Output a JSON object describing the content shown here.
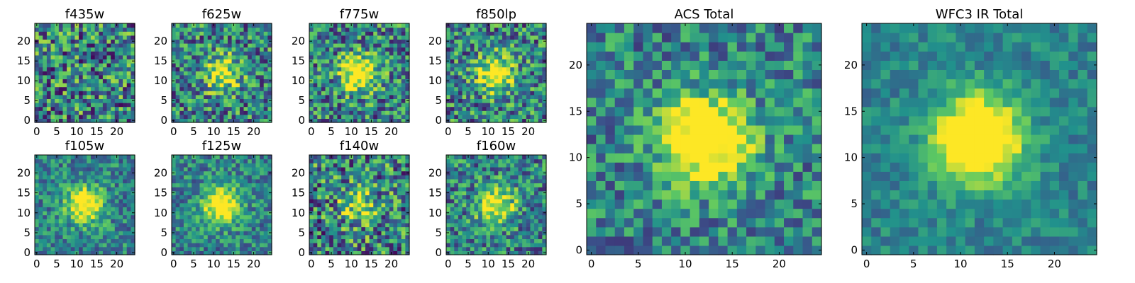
{
  "chart_data": [
    {
      "type": "heatmap",
      "title": "f435w",
      "xlim": [
        -0.5,
        24.5
      ],
      "ylim": [
        -0.5,
        24.5
      ],
      "xticks": [
        0,
        5,
        10,
        15,
        20
      ],
      "yticks": [
        0,
        5,
        10,
        15,
        20
      ],
      "grid_size": 25,
      "source_center": null,
      "source_strength": 0.0,
      "noise_level": 0.85,
      "seed": 11
    },
    {
      "type": "heatmap",
      "title": "f625w",
      "xlim": [
        -0.5,
        24.5
      ],
      "ylim": [
        -0.5,
        24.5
      ],
      "xticks": [
        0,
        5,
        10,
        15,
        20
      ],
      "yticks": [
        0,
        5,
        10,
        15,
        20
      ],
      "grid_size": 25,
      "source_center": [
        12,
        12
      ],
      "source_strength": 0.55,
      "noise_level": 0.75,
      "seed": 23
    },
    {
      "type": "heatmap",
      "title": "f775w",
      "xlim": [
        -0.5,
        24.5
      ],
      "ylim": [
        -0.5,
        24.5
      ],
      "xticks": [
        0,
        5,
        10,
        15,
        20
      ],
      "yticks": [
        0,
        5,
        10,
        15,
        20
      ],
      "grid_size": 25,
      "source_center": [
        12,
        12
      ],
      "source_strength": 0.75,
      "noise_level": 0.75,
      "seed": 37
    },
    {
      "type": "heatmap",
      "title": "f850lp",
      "xlim": [
        -0.5,
        24.5
      ],
      "ylim": [
        -0.5,
        24.5
      ],
      "xticks": [
        0,
        5,
        10,
        15,
        20
      ],
      "yticks": [
        0,
        5,
        10,
        15,
        20
      ],
      "grid_size": 25,
      "source_center": [
        12,
        12
      ],
      "source_strength": 0.7,
      "noise_level": 0.75,
      "seed": 41
    },
    {
      "type": "heatmap",
      "title": "f105w",
      "xlim": [
        -0.5,
        24.5
      ],
      "ylim": [
        -0.5,
        24.5
      ],
      "xticks": [
        0,
        5,
        10,
        15,
        20
      ],
      "yticks": [
        0,
        5,
        10,
        15,
        20
      ],
      "grid_size": 25,
      "source_center": [
        12,
        12
      ],
      "source_strength": 0.7,
      "noise_level": 0.5,
      "seed": 53
    },
    {
      "type": "heatmap",
      "title": "f125w",
      "xlim": [
        -0.5,
        24.5
      ],
      "ylim": [
        -0.5,
        24.5
      ],
      "xticks": [
        0,
        5,
        10,
        15,
        20
      ],
      "yticks": [
        0,
        5,
        10,
        15,
        20
      ],
      "grid_size": 25,
      "source_center": [
        12,
        12
      ],
      "source_strength": 0.75,
      "noise_level": 0.5,
      "seed": 67
    },
    {
      "type": "heatmap",
      "title": "f140w",
      "xlim": [
        -0.5,
        24.5
      ],
      "ylim": [
        -0.5,
        24.5
      ],
      "xticks": [
        0,
        5,
        10,
        15,
        20
      ],
      "yticks": [
        0,
        5,
        10,
        15,
        20
      ],
      "grid_size": 25,
      "source_center": [
        12,
        12
      ],
      "source_strength": 0.45,
      "noise_level": 0.85,
      "seed": 79
    },
    {
      "type": "heatmap",
      "title": "f160w",
      "xlim": [
        -0.5,
        24.5
      ],
      "ylim": [
        -0.5,
        24.5
      ],
      "xticks": [
        0,
        5,
        10,
        15,
        20
      ],
      "yticks": [
        0,
        5,
        10,
        15,
        20
      ],
      "grid_size": 25,
      "source_center": [
        12,
        12
      ],
      "source_strength": 0.65,
      "noise_level": 0.65,
      "seed": 83
    },
    {
      "type": "heatmap",
      "title": "ACS Total",
      "xlim": [
        -0.5,
        24.5
      ],
      "ylim": [
        -0.5,
        24.5
      ],
      "xticks": [
        0,
        5,
        10,
        15,
        20
      ],
      "yticks": [
        0,
        5,
        10,
        15,
        20
      ],
      "grid_size": 25,
      "source_center": [
        12,
        12
      ],
      "source_strength": 0.95,
      "noise_level": 0.55,
      "seed": 97
    },
    {
      "type": "heatmap",
      "title": "WFC3 IR Total",
      "xlim": [
        -0.5,
        24.5
      ],
      "ylim": [
        -0.5,
        24.5
      ],
      "xticks": [
        0,
        5,
        10,
        15,
        20
      ],
      "yticks": [
        0,
        5,
        10,
        15,
        20
      ],
      "grid_size": 25,
      "source_center": [
        12,
        12
      ],
      "source_strength": 0.95,
      "noise_level": 0.3,
      "seed": 101
    }
  ],
  "colormap": [
    "#440154",
    "#3b528b",
    "#21918c",
    "#5ec962",
    "#fde725"
  ]
}
